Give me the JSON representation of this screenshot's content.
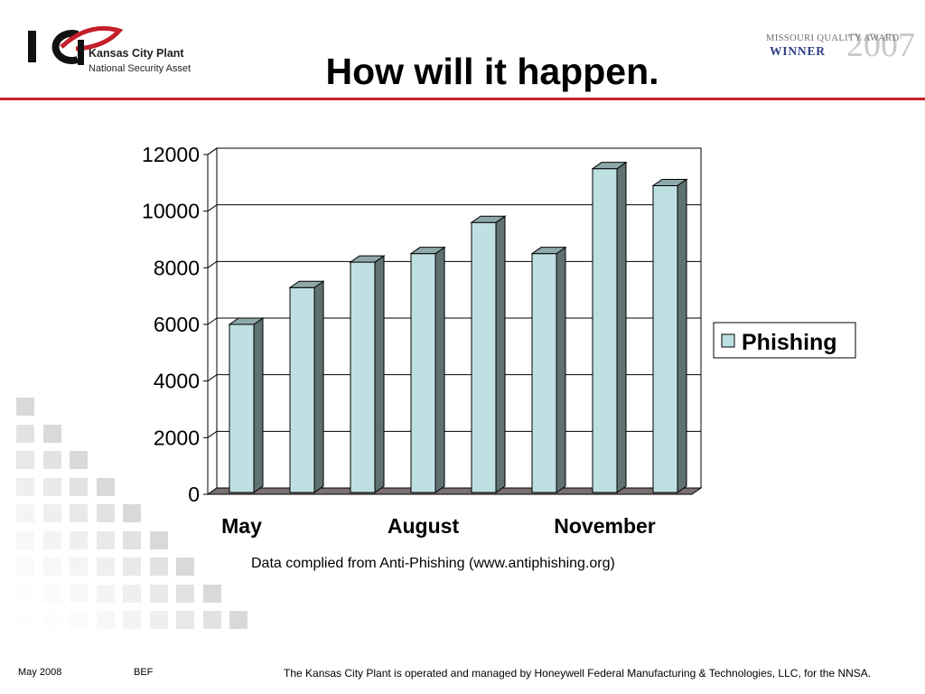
{
  "logo": {
    "mark": "KCP",
    "name": "Kansas City Plant",
    "tagline": "National Security Asset"
  },
  "award": {
    "line1": "Missouri Quality Award",
    "line2": "WINNER",
    "year": "2007"
  },
  "title": "How will it happen.",
  "source_note": "Data complied from Anti-Phishing (www.antiphishing.org)",
  "footer": {
    "date": "May 2008",
    "author": "BEF",
    "note": "The Kansas City Plant is operated and managed by Honeywell Federal Manufacturing & Technologies, LLC, for the NNSA."
  },
  "colors": {
    "rule": "#c41f2a",
    "bar_front": "#bfe0e2",
    "bar_side": "#5f7171",
    "floor": "#7a7070"
  },
  "chart_data": {
    "type": "bar",
    "style": "3d-column",
    "categories": [
      "May",
      "",
      "",
      "August",
      "",
      "",
      "November",
      ""
    ],
    "series": [
      {
        "name": "Phishing",
        "values": [
          6000,
          7300,
          8200,
          8500,
          9600,
          8500,
          11500,
          10900
        ]
      }
    ],
    "ylim": [
      0,
      12000
    ],
    "yticks": [
      "0",
      "2000",
      "4000",
      "6000",
      "8000",
      "10000",
      "12000"
    ],
    "xticks": [
      "May",
      "August",
      "November"
    ],
    "grid": true,
    "legend": "right"
  }
}
